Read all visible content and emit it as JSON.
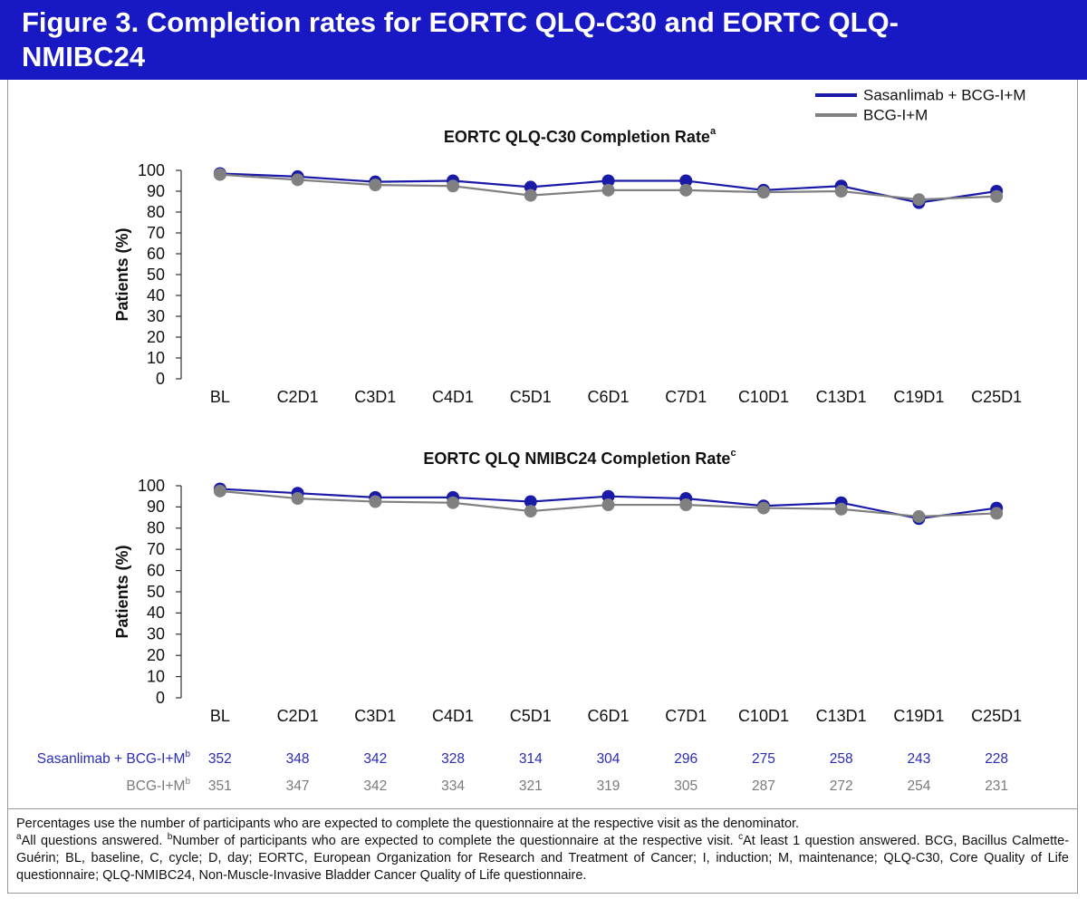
{
  "header": {
    "title": "Figure 3. Completion rates for EORTC QLQ-C30 and EORTC QLQ- NMIBC24"
  },
  "chart_data": [
    {
      "type": "line",
      "title": "EORTC QLQ-C30 Completion Rate",
      "title_note": "a",
      "ylabel": "Patients (%)",
      "categories": [
        "BL",
        "C2D1",
        "C3D1",
        "C4D1",
        "C5D1",
        "C6D1",
        "C7D1",
        "C10D1",
        "C13D1",
        "C19D1",
        "C25D1"
      ],
      "series": [
        {
          "name": "Sasanlimab + BCG-I+M",
          "color": "#1a1aa8",
          "values": [
            98.5,
            97,
            94.5,
            95,
            92,
            95,
            95,
            90.5,
            92.5,
            84.5,
            90
          ]
        },
        {
          "name": "BCG-I+M",
          "color": "#808080",
          "values": [
            98,
            95.5,
            93,
            92.5,
            88,
            90.5,
            90.5,
            89.5,
            90,
            86,
            87.5
          ]
        }
      ],
      "ylim": [
        0,
        100
      ],
      "yticks": [
        0,
        10,
        20,
        30,
        40,
        50,
        60,
        70,
        80,
        90,
        100
      ]
    },
    {
      "type": "line",
      "title": "EORTC QLQ NMIBC24 Completion Rate",
      "title_note": "c",
      "ylabel": "Patients (%)",
      "categories": [
        "BL",
        "C2D1",
        "C3D1",
        "C4D1",
        "C5D1",
        "C6D1",
        "C7D1",
        "C10D1",
        "C13D1",
        "C19D1",
        "C25D1"
      ],
      "series": [
        {
          "name": "Sasanlimab + BCG-I+M",
          "color": "#1a1aa8",
          "values": [
            98.5,
            96.5,
            94.5,
            94.5,
            92.5,
            95,
            94,
            90.5,
            92,
            84.5,
            89.5
          ]
        },
        {
          "name": "BCG-I+M",
          "color": "#808080",
          "values": [
            97.5,
            94,
            92.5,
            92,
            88,
            91,
            91,
            89.5,
            89,
            85.5,
            87
          ]
        }
      ],
      "ylim": [
        0,
        100
      ],
      "yticks": [
        0,
        10,
        20,
        30,
        40,
        50,
        60,
        70,
        80,
        90,
        100
      ]
    }
  ],
  "table": {
    "rows": [
      {
        "label": "Sasanlimab + BCG-I+M",
        "label_note": "b",
        "color": "#2a2ab8",
        "values": [
          352,
          348,
          342,
          328,
          314,
          304,
          296,
          275,
          258,
          243,
          228
        ]
      },
      {
        "label": "BCG-I+M",
        "label_note": "b",
        "color": "#7a7a7a",
        "values": [
          351,
          347,
          342,
          334,
          321,
          319,
          305,
          287,
          272,
          254,
          231
        ]
      }
    ]
  },
  "footnotes": {
    "denominator": "Percentages use the number of participants who are expected to complete the questionnaire at the respective visit as the denominator.",
    "notes": [
      {
        "mark": "a",
        "text": "All questions answered."
      },
      {
        "mark": "b",
        "text": "Number of participants who are expected to complete the questionnaire at the respective visit."
      },
      {
        "mark": "c",
        "text": "At least 1 question answered."
      }
    ],
    "abbreviations": "BCG, Bacillus Calmette-Guérin; BL, baseline, C, cycle; D, day; EORTC, European Organization for Research and Treatment of Cancer; I, induction; M, maintenance; QLQ-C30, Core Quality of Life questionnaire; QLQ-NMIBC24, Non-Muscle-Invasive Bladder Cancer Quality of Life questionnaire."
  }
}
